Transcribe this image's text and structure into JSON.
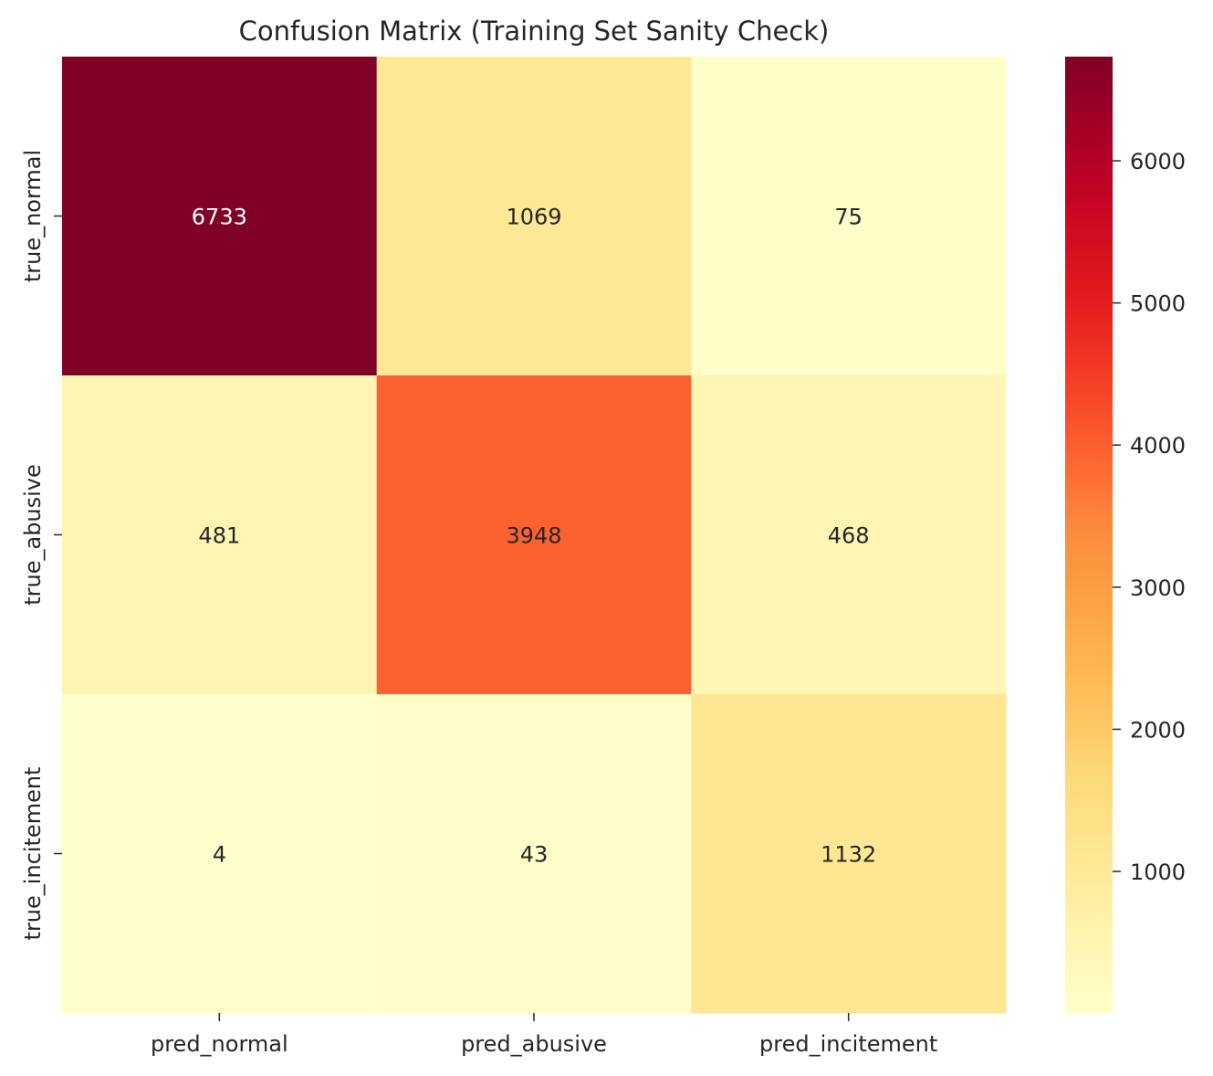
{
  "chart_data": {
    "type": "heatmap",
    "title": "Confusion Matrix (Training Set Sanity Check)",
    "x_categories": [
      "pred_normal",
      "pred_abusive",
      "pred_incitement"
    ],
    "y_categories": [
      "true_normal",
      "true_abusive",
      "true_incitement"
    ],
    "values": [
      [
        6733,
        1069,
        75
      ],
      [
        481,
        3948,
        468
      ],
      [
        4,
        43,
        1132
      ]
    ],
    "colormap": "YlOrRd",
    "color_range": [
      4,
      6733
    ],
    "colorbar_ticks": [
      1000,
      2000,
      3000,
      4000,
      5000,
      6000
    ],
    "grid": false
  }
}
